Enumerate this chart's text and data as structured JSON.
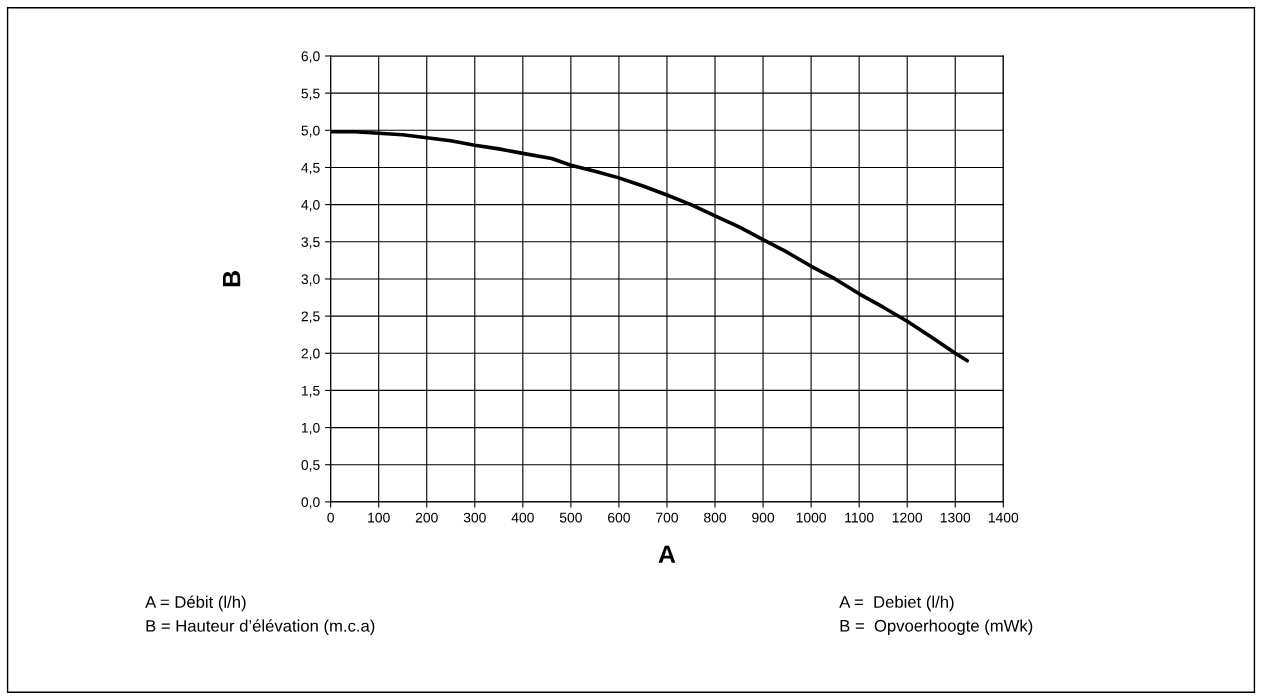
{
  "chart_data": {
    "type": "line",
    "xlabel": "A",
    "ylabel": "B",
    "x": [
      0,
      50,
      100,
      150,
      200,
      250,
      300,
      350,
      400,
      460,
      500,
      550,
      600,
      650,
      700,
      750,
      800,
      850,
      900,
      950,
      1000,
      1050,
      1100,
      1150,
      1200,
      1250,
      1300,
      1325
    ],
    "series": [
      {
        "color": "#000000",
        "values": [
          4.98,
          4.98,
          4.96,
          4.94,
          4.9,
          4.86,
          4.8,
          4.75,
          4.69,
          4.62,
          4.53,
          4.45,
          4.36,
          4.25,
          4.13,
          4.0,
          3.85,
          3.7,
          3.53,
          3.36,
          3.17,
          3.0,
          2.8,
          2.62,
          2.43,
          2.22,
          2.0,
          1.9
        ]
      }
    ],
    "xlim": [
      0,
      1400
    ],
    "xticks": [
      0,
      100,
      200,
      300,
      400,
      500,
      600,
      700,
      800,
      900,
      1000,
      1100,
      1200,
      1300,
      1400
    ],
    "ylim": [
      0,
      6
    ],
    "yticks": [
      {
        "value": 0,
        "label": "0,0"
      },
      {
        "value": 0.5,
        "label": "0,5"
      },
      {
        "value": 1,
        "label": "1,0"
      },
      {
        "value": 1.5,
        "label": "1,5"
      },
      {
        "value": 2,
        "label": "2,0"
      },
      {
        "value": 2.5,
        "label": "2,5"
      },
      {
        "value": 3,
        "label": "3,0"
      },
      {
        "value": 3.5,
        "label": "3,5"
      },
      {
        "value": 4,
        "label": "4,0"
      },
      {
        "value": 4.5,
        "label": "4,5"
      },
      {
        "value": 5,
        "label": "5,0"
      },
      {
        "value": 5.5,
        "label": "5,5"
      },
      {
        "value": 6,
        "label": "6,0"
      }
    ],
    "grid": true,
    "legend": false,
    "marker": "none",
    "line_style": "solid",
    "annotations": [
      "A = Débit (l/h)",
      "B = Hauteur d’élévation (m.c.a)",
      "A =  Debiet (l/h)",
      "B =  Opvoerhoogte (mWk)"
    ]
  }
}
